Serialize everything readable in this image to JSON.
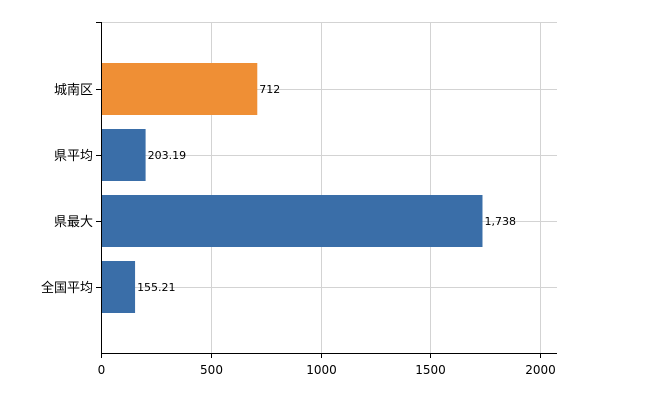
{
  "chart_data": {
    "type": "bar",
    "orientation": "horizontal",
    "categories": [
      "城南区",
      "県平均",
      "県最大",
      "全国平均"
    ],
    "values": [
      712,
      203.19,
      1738,
      155.21
    ],
    "data_labels": [
      "712",
      "203.19",
      "1,738",
      "155.21"
    ],
    "colors": [
      "#ef8f35",
      "#3a6ea8",
      "#3a6ea8",
      "#3a6ea8"
    ],
    "xlim": [
      0,
      2000
    ],
    "xticks": [
      0,
      500,
      1000,
      1500,
      2000
    ],
    "xtick_labels": [
      "0",
      "500",
      "1000",
      "1500",
      "2000"
    ],
    "grid": true
  }
}
